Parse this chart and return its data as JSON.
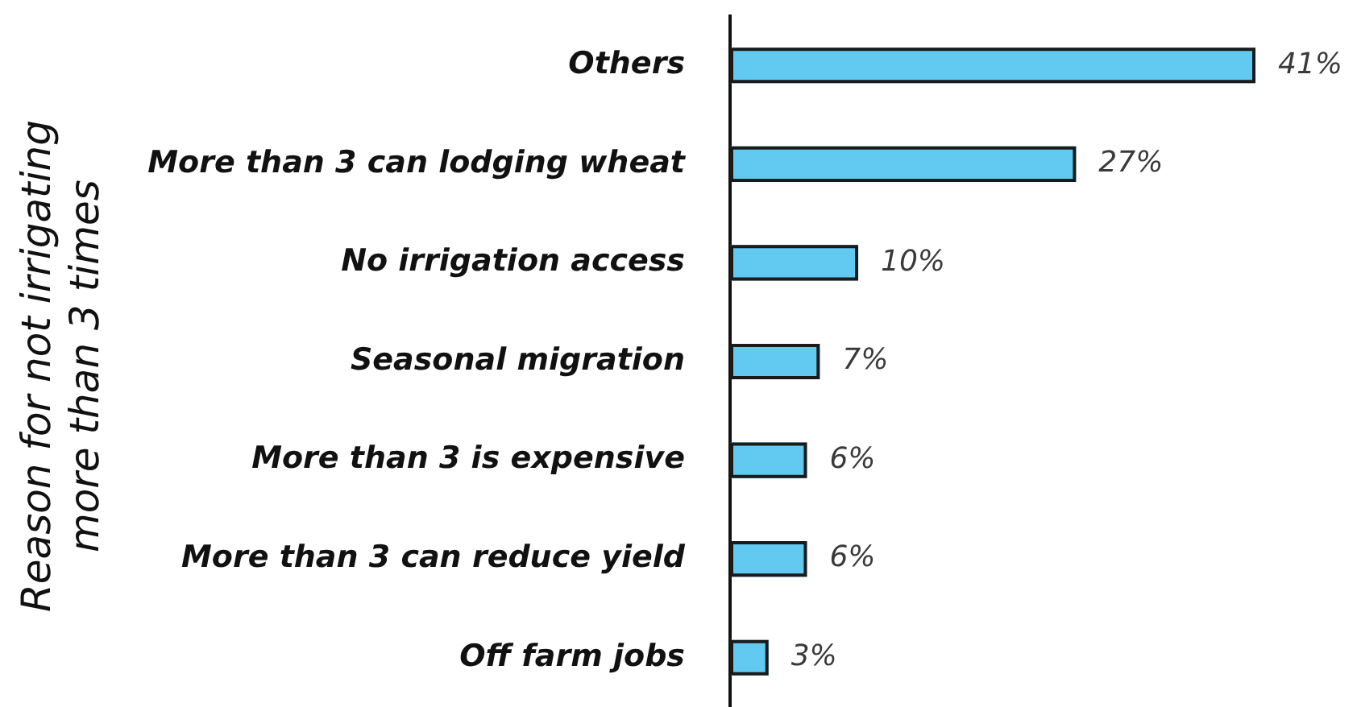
{
  "chart_data": {
    "type": "bar",
    "orientation": "horizontal",
    "ylabel": "Reason for not irrigating more than 3 times",
    "categories": [
      "Others",
      "More than 3 can lodging wheat",
      "No irrigation access",
      "Seasonal migration",
      "More than 3 is expensive",
      "More than 3 can reduce yield",
      "Off farm jobs"
    ],
    "values": [
      41,
      27,
      10,
      7,
      6,
      6,
      3
    ],
    "color": "#62caf0",
    "value_labels": [
      "41%",
      "27%",
      "10%",
      "7%",
      "6%",
      "6%",
      "3%"
    ]
  }
}
